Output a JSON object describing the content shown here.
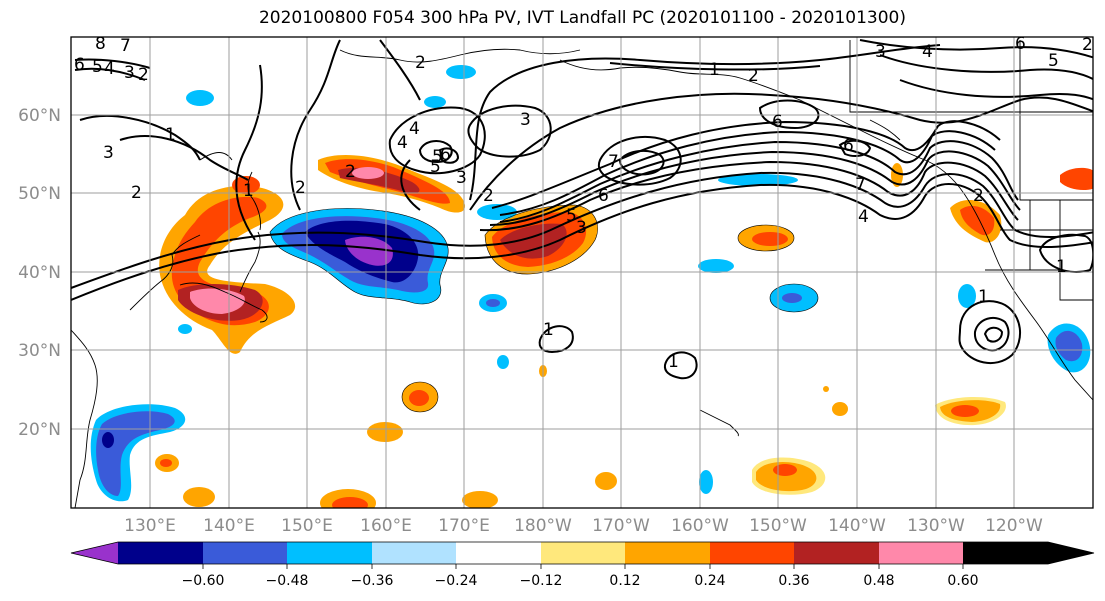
{
  "title": "2020100800 F054 300 hPa PV, IVT Landfall PC (2020101100 - 2020101300)",
  "map": {
    "lon_labels": [
      "130°E",
      "140°E",
      "150°E",
      "160°E",
      "170°E",
      "180°W",
      "170°W",
      "160°W",
      "150°W",
      "140°W",
      "130°W",
      "120°W"
    ],
    "lat_labels": [
      "60°N",
      "50°N",
      "40°N",
      "30°N",
      "20°N"
    ],
    "shading": "IVT landfall PC (filled)",
    "contours": "300 hPa PV (black lines)",
    "contour_labels": [
      "8",
      "7",
      "6",
      "5",
      "4",
      "3",
      "2",
      "2",
      "1",
      "3",
      "2",
      "1",
      "2",
      "2",
      "4",
      "5",
      "3",
      "4",
      "5",
      "6",
      "3",
      "2",
      "5",
      "3",
      "7",
      "6",
      "1",
      "2",
      "6",
      "7",
      "6",
      "4",
      "2",
      "3",
      "4",
      "5",
      "6",
      "1",
      "1",
      "1",
      "1",
      "2"
    ]
  },
  "colorbar": {
    "ticks": [
      "−0.60",
      "−0.48",
      "−0.36",
      "−0.24",
      "−0.12",
      "0.12",
      "0.24",
      "0.36",
      "0.48",
      "0.60"
    ],
    "colors": [
      "#9932cc",
      "#00008b",
      "#3a5bd9",
      "#00bfff",
      "#b0e2ff",
      "#ffffff",
      "#ffe87c",
      "#ffa500",
      "#ff4500",
      "#b22222",
      "#ff88aa"
    ]
  },
  "chart_data": {
    "type": "heatmap",
    "title": "2020100800 F054 300 hPa PV, IVT Landfall PC (2020101100 - 2020101300)",
    "xlabel": "",
    "ylabel": "",
    "x_ticks": [
      "130°E",
      "140°E",
      "150°E",
      "160°E",
      "170°E",
      "180°W",
      "170°W",
      "160°W",
      "150°W",
      "140°W",
      "130°W",
      "120°W"
    ],
    "y_ticks": [
      "60°N",
      "50°N",
      "40°N",
      "30°N",
      "20°N"
    ],
    "xlim": [
      "120°E",
      "250°E"
    ],
    "ylim": [
      10,
      70
    ],
    "grid": true,
    "colorbar_levels": [
      -0.6,
      -0.48,
      -0.36,
      -0.24,
      -0.12,
      0.12,
      0.24,
      0.36,
      0.48,
      0.6
    ],
    "colorbar_extend": "both",
    "colorbar_placement": "bottom"
  }
}
